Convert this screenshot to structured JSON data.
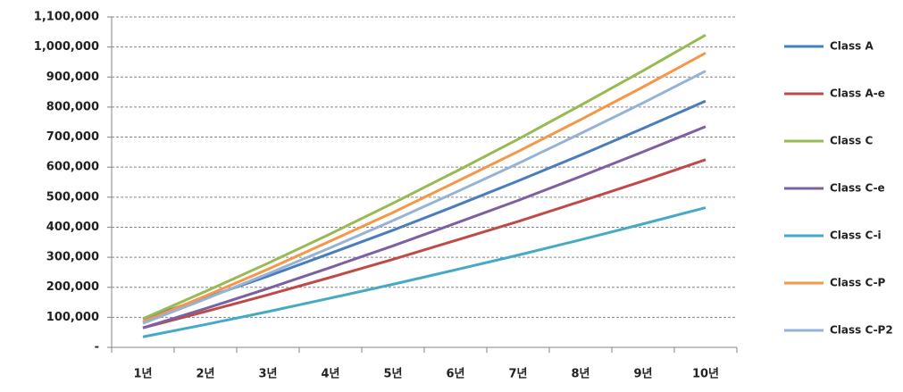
{
  "chart_data": {
    "type": "line",
    "categories": [
      "1년",
      "2년",
      "3년",
      "4년",
      "5년",
      "6년",
      "7년",
      "8년",
      "9년",
      "10년"
    ],
    "series": [
      {
        "name": "Class A",
        "color": "#4a7ebb",
        "values": [
          95000,
          165000,
          237000,
          313000,
          390000,
          471000,
          554000,
          640000,
          729000,
          820000
        ]
      },
      {
        "name": "Class A-e",
        "color": "#be4b48",
        "values": [
          65000,
          119000,
          175000,
          233000,
          293000,
          356000,
          419000,
          486000,
          554000,
          625000
        ]
      },
      {
        "name": "Class C",
        "color": "#98b954",
        "values": [
          95000,
          186000,
          280000,
          378000,
          480000,
          585000,
          693000,
          806000,
          921000,
          1040000
        ]
      },
      {
        "name": "Class C-e",
        "color": "#7d60a0",
        "values": [
          65000,
          129000,
          196000,
          266000,
          338000,
          413000,
          489000,
          569000,
          651000,
          735000
        ]
      },
      {
        "name": "Class C-i",
        "color": "#46aac5",
        "values": [
          35000,
          76000,
          119000,
          164000,
          210000,
          258000,
          307000,
          358000,
          411000,
          465000
        ]
      },
      {
        "name": "Class C-P",
        "color": "#f79646",
        "values": [
          85000,
          171000,
          260000,
          354000,
          449000,
          550000,
          652000,
          758000,
          867000,
          980000
        ]
      },
      {
        "name": "Class C-P2",
        "color": "#95b3d7",
        "values": [
          80000,
          161000,
          245000,
          332000,
          422000,
          516000,
          612000,
          712000,
          814000,
          920000
        ]
      }
    ],
    "ylim": [
      0,
      1100000
    ],
    "yticks": [
      {
        "value": 0,
        "label": "-"
      },
      {
        "value": 100000,
        "label": "100,000"
      },
      {
        "value": 200000,
        "label": "200,000"
      },
      {
        "value": 300000,
        "label": "300,000"
      },
      {
        "value": 400000,
        "label": "400,000"
      },
      {
        "value": 500000,
        "label": "500,000"
      },
      {
        "value": 600000,
        "label": "600,000"
      },
      {
        "value": 700000,
        "label": "700,000"
      },
      {
        "value": 800000,
        "label": "800,000"
      },
      {
        "value": 900000,
        "label": "900,000"
      },
      {
        "value": 1000000,
        "label": "1,000,000"
      },
      {
        "value": 1100000,
        "label": "1,100,000"
      }
    ],
    "grid": true,
    "legend": "right"
  }
}
